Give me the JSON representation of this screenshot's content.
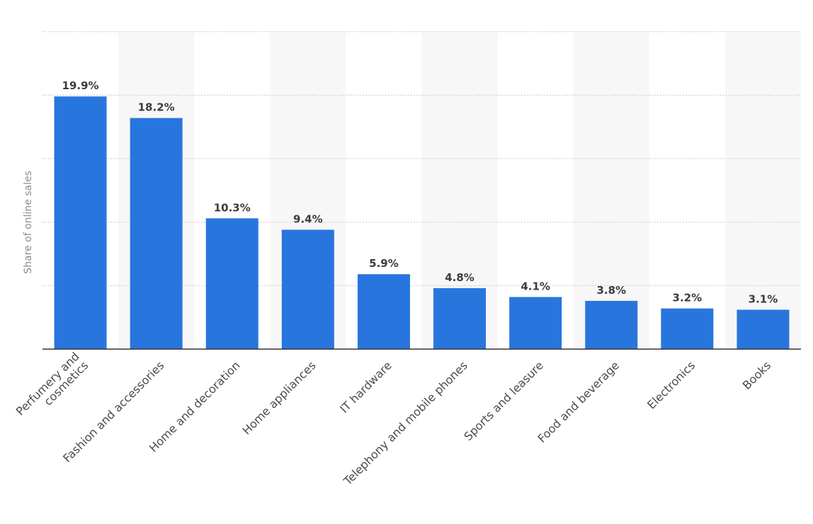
{
  "chart_data": {
    "type": "bar",
    "title": "",
    "xlabel": "",
    "ylabel": "Share of online sales",
    "ylim": [
      0,
      25
    ],
    "y_gridlines": [
      0,
      5,
      10,
      15,
      20,
      25
    ],
    "grid": true,
    "y_tick_labels_shown": false,
    "categories": [
      "Perfumery and cosmetics",
      "Fashion and accessories",
      "Home and decoration",
      "Home appliances",
      "IT hardware",
      "Telephony and mobile phones",
      "Sports and leasure",
      "Food and beverage",
      "Electronics",
      "Books"
    ],
    "category_label_lines": [
      [
        "Perfumery and",
        "cosmetics"
      ],
      [
        "Fashion and accessories"
      ],
      [
        "Home and decoration"
      ],
      [
        "Home appliances"
      ],
      [
        "IT hardware"
      ],
      [
        "Telephony and mobile phones"
      ],
      [
        "Sports and leasure"
      ],
      [
        "Food and beverage"
      ],
      [
        "Electronics"
      ],
      [
        "Books"
      ]
    ],
    "values": [
      19.9,
      18.2,
      10.3,
      9.4,
      5.9,
      4.8,
      4.1,
      3.8,
      3.2,
      3.1
    ],
    "value_labels": [
      "19.9%",
      "18.2%",
      "10.3%",
      "9.4%",
      "5.9%",
      "4.8%",
      "4.1%",
      "3.8%",
      "3.2%",
      "3.1%"
    ],
    "colors": {
      "bar": "#2876dd",
      "band": "#f7f7f7",
      "gridline": "#c9c9c9",
      "axis": "#333333"
    }
  }
}
